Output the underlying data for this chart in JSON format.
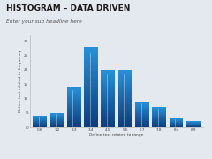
{
  "title": "HISTOGRAM – DATA DRIVEN",
  "subtitle": "Enter your sub headline here",
  "xlabel": "Define text related to range",
  "ylabel": "Define text related to frequency",
  "bar_values": [
    4,
    5,
    14,
    28,
    20,
    20,
    9,
    7,
    3,
    2
  ],
  "xtick_labels": [
    "0.6",
    "1.2",
    "3.3",
    "3.4",
    "4.5",
    "5.6",
    "6.7",
    "7.8",
    "8.4",
    "8.9"
  ],
  "ytick_values": [
    0,
    5,
    10,
    15,
    20,
    25,
    30
  ],
  "ylim": [
    0,
    32
  ],
  "background_color": "#e4e9ef",
  "plot_bg_color": "#e4e9ef",
  "title_color": "#1a1a1a",
  "subtitle_color": "#555555",
  "title_fontsize": 6.5,
  "subtitle_fontsize": 4.2,
  "axis_fontsize": 3.2,
  "tick_fontsize": 3.0,
  "bar_color_dark": "#0d3d7a",
  "bar_color_light": "#3399dd"
}
